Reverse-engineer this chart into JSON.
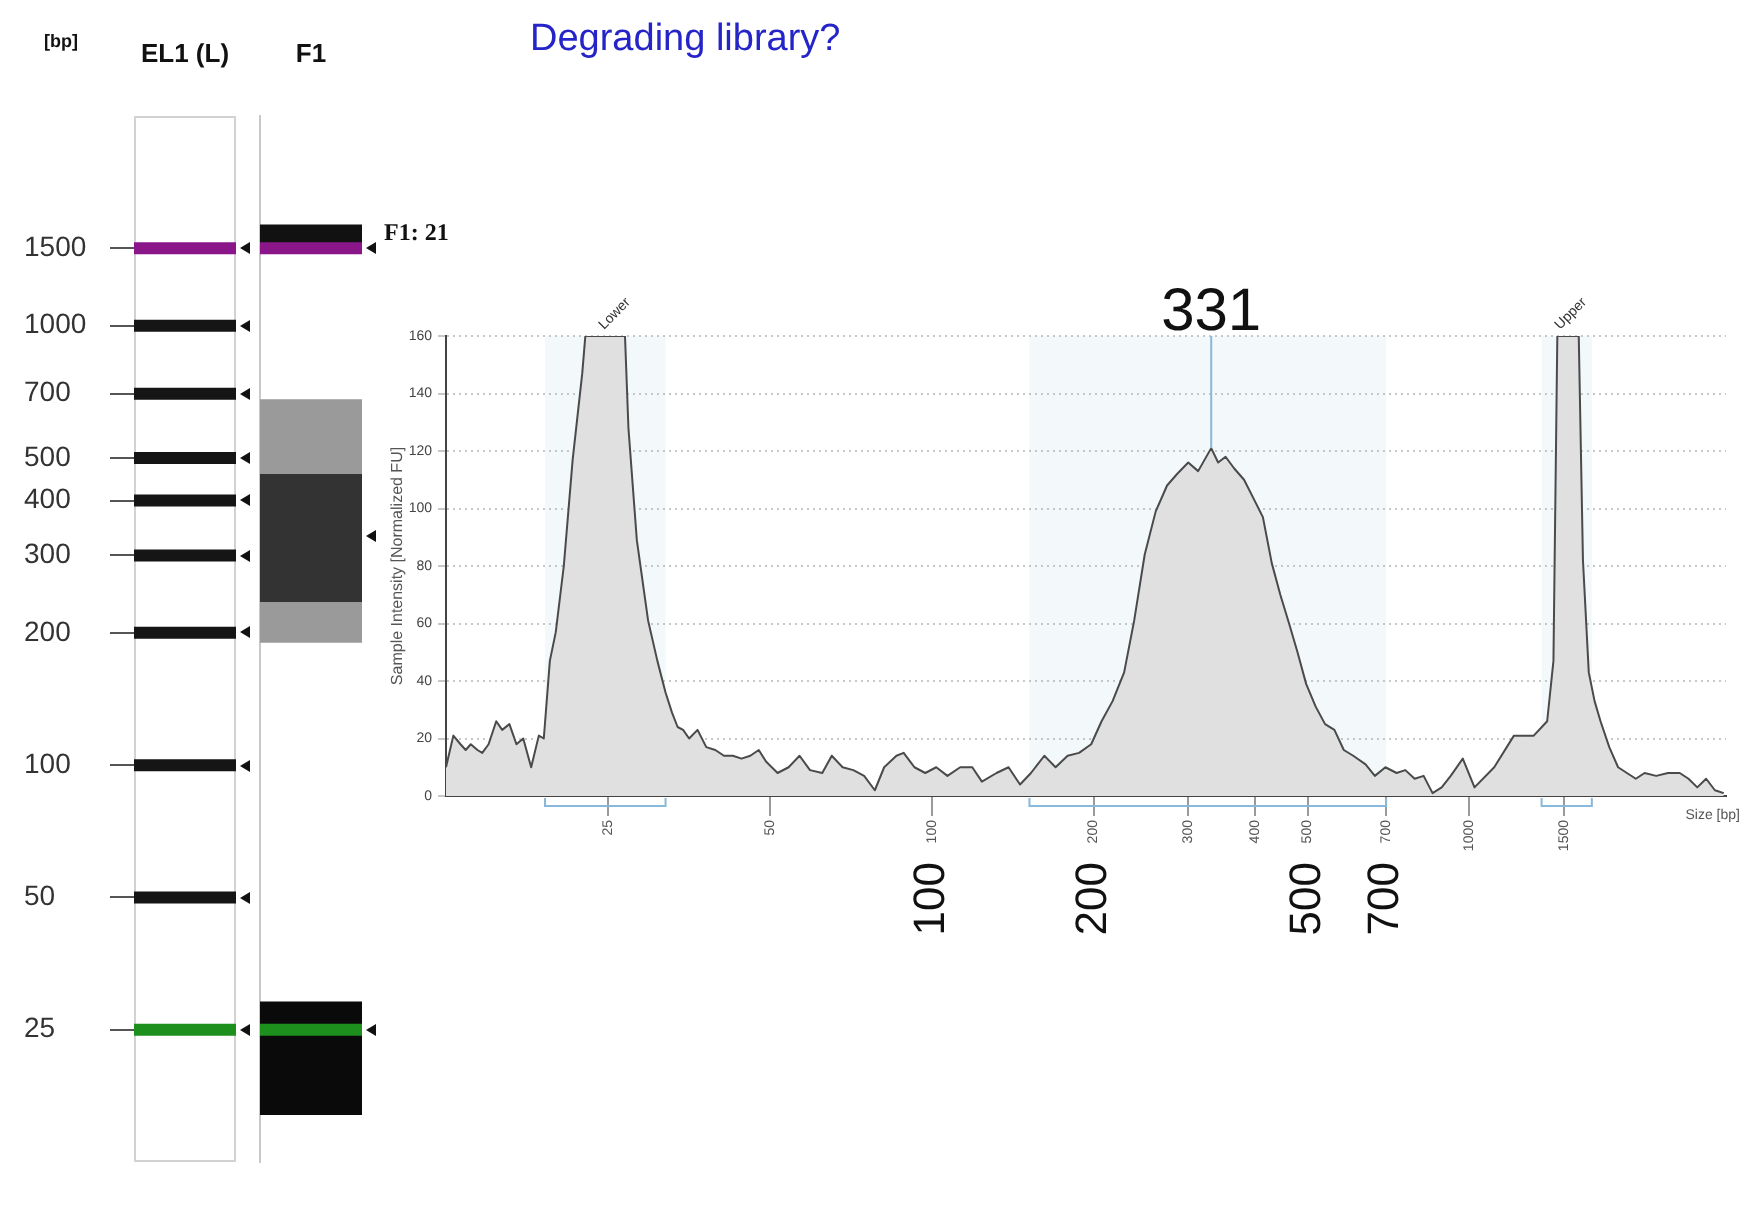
{
  "chart_data": [
    {
      "type": "scatter",
      "categories": [
        "EL1 (L)"
      ],
      "ylabel": "[bp]",
      "log": "y",
      "ylim": [
        12.5,
        3000
      ],
      "yticks": [
        1500,
        1000,
        700,
        500,
        400,
        300,
        200,
        100,
        50,
        25
      ],
      "ref_lines": [
        {
          "axis": "y",
          "value": 1500,
          "color": "#8a168a"
        },
        {
          "axis": "y",
          "value": 1000,
          "color": "#151515"
        },
        {
          "axis": "y",
          "value": 700,
          "color": "#151515"
        },
        {
          "axis": "y",
          "value": 500,
          "color": "#151515"
        },
        {
          "axis": "y",
          "value": 400,
          "color": "#151515"
        },
        {
          "axis": "y",
          "value": 300,
          "color": "#151515"
        },
        {
          "axis": "y",
          "value": 200,
          "color": "#151515"
        },
        {
          "axis": "y",
          "value": 100,
          "color": "#151515"
        },
        {
          "axis": "y",
          "value": 50,
          "color": "#151515"
        },
        {
          "axis": "y",
          "value": 25,
          "color": "#1d8f1d"
        }
      ]
    },
    {
      "type": "scatter",
      "categories": [
        "F1"
      ],
      "log": "y",
      "ylim": [
        12.5,
        3000
      ],
      "tick_labels": "x",
      "ref_lines": [
        {
          "axis": "y",
          "value": 1500,
          "color": "#8a168a"
        },
        {
          "axis": "y",
          "value": 25,
          "color": "#1d8f1d"
        }
      ],
      "bands": [
        {
          "axis": "y",
          "from": 1500,
          "to": 1700,
          "color": "#111111"
        },
        {
          "axis": "y",
          "from": 190,
          "to": 680,
          "color": "#9a9a9a"
        },
        {
          "axis": "y",
          "from": 235,
          "to": 460,
          "color": "#333333"
        },
        {
          "axis": "y",
          "from": 16,
          "to": 29,
          "color": "#0a0a0a"
        }
      ],
      "annotations": [
        "F1: 21"
      ]
    },
    {
      "type": "area",
      "title": "Degrading library?",
      "xlabel": "Size [bp]",
      "ylabel": "Sample Intensity [Normalized FU]",
      "x": [
        12.5,
        12.9,
        13.3,
        13.6,
        13.9,
        14.3,
        14.6,
        15.0,
        15.5,
        15.9,
        16.4,
        16.9,
        17.4,
        18.0,
        18.6,
        19.0,
        19.5,
        20.0,
        20.7,
        21.5,
        22.4,
        22.7,
        26.9,
        27.3,
        28.3,
        29.7,
        30.9,
        32.0,
        32.9,
        33.7,
        34.5,
        35.4,
        36.7,
        38.1,
        39.6,
        41.1,
        42.7,
        44.3,
        46.0,
        47.7,
        49.2,
        51.7,
        54.2,
        56.8,
        59.4,
        62.6,
        65.2,
        68.3,
        71.5,
        74.9,
        78.4,
        81.6,
        86.0,
        88.7,
        92.9,
        97.3,
        102,
        107,
        113,
        119,
        124,
        132,
        139,
        146,
        153,
        162,
        170,
        179,
        188,
        198,
        207,
        217,
        228,
        238,
        249,
        261,
        274,
        286,
        300,
        313,
        331,
        341,
        352,
        365,
        381,
        398,
        413,
        429,
        445,
        462,
        479,
        497,
        518,
        539,
        561,
        584,
        608,
        641,
        667,
        698,
        732,
        760,
        791,
        822,
        854,
        888,
        923,
        972,
        1022,
        1112,
        1210,
        1317,
        1395,
        1433,
        1457,
        1597,
        1626,
        1667,
        1709,
        1753,
        1820,
        1890,
        1963,
        2039,
        2117,
        2225,
        2340,
        2461,
        2555,
        2653,
        2755,
        2861,
        2971
      ],
      "values": [
        10,
        21,
        18,
        16,
        18,
        16,
        15,
        18,
        26,
        23,
        25,
        18,
        20,
        10,
        21,
        20,
        47,
        57,
        80,
        117,
        147,
        160,
        160,
        128,
        89,
        61,
        47,
        36,
        29,
        24,
        23,
        20,
        23,
        17,
        16,
        14,
        14,
        13,
        14,
        16,
        12,
        8,
        10,
        14,
        9,
        8,
        14,
        10,
        9,
        7,
        2,
        10,
        14,
        15,
        10,
        8,
        10,
        7,
        10,
        10,
        5,
        8,
        10,
        4,
        8,
        14,
        10,
        14,
        15,
        18,
        26,
        33,
        43,
        61,
        84,
        99,
        108,
        112,
        116,
        113,
        121,
        116,
        118,
        114,
        110,
        103,
        97,
        81,
        70,
        60,
        50,
        39,
        31,
        25,
        23,
        16,
        14,
        11,
        7,
        10,
        8,
        9,
        6,
        7,
        1,
        3,
        7,
        13,
        3,
        10,
        21,
        21,
        26,
        47,
        160,
        160,
        82,
        43,
        33,
        26,
        17,
        10,
        8,
        6,
        8,
        7,
        8,
        8,
        6,
        3,
        6,
        2,
        1
      ],
      "color": "#e0e0e0",
      "log": "x",
      "xlim": [
        12.5,
        3000
      ],
      "xticks": [
        25,
        50,
        100,
        200,
        300,
        400,
        500,
        700,
        1000,
        1500
      ],
      "ylim": [
        0,
        160
      ],
      "yticks": [
        0,
        20,
        40,
        60,
        80,
        100,
        120,
        140,
        160
      ],
      "grid": "y",
      "marker": "none",
      "ref_lines": [
        {
          "axis": "x",
          "value": 331,
          "label": "331",
          "color": "#88b8dc"
        }
      ],
      "bands": [
        {
          "axis": "x",
          "from": 19.1,
          "to": 32,
          "color": "#88b8dc"
        },
        {
          "axis": "x",
          "from": 152,
          "to": 700,
          "color": "#88b8dc"
        },
        {
          "axis": "x",
          "from": 1362,
          "to": 1689,
          "color": "#88b8dc"
        }
      ],
      "annotations": [
        {
          "text": "Lower",
          "x": 25,
          "y": 160
        },
        {
          "text": "Upper",
          "x": 1500,
          "y": 160
        },
        "100",
        "200",
        "500",
        "700"
      ]
    }
  ]
}
